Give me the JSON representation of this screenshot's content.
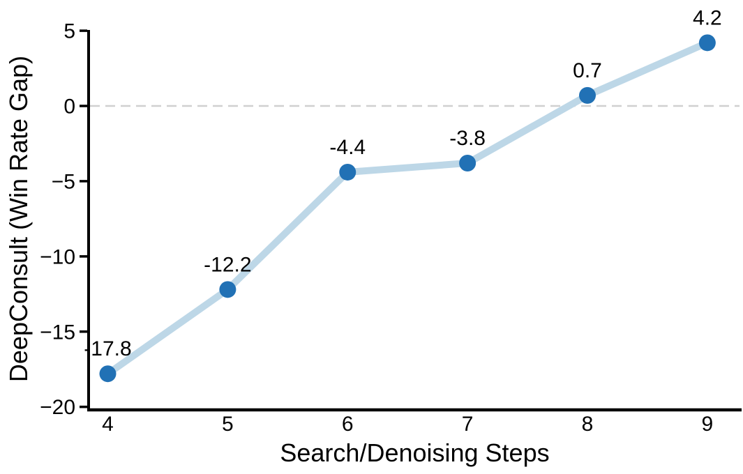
{
  "chart_data": {
    "type": "line",
    "x": [
      4,
      5,
      6,
      7,
      8,
      9
    ],
    "series": [
      {
        "name": "DeepConsult win rate gap",
        "values": [
          -17.8,
          -12.2,
          -4.4,
          -3.8,
          0.7,
          4.2
        ],
        "point_labels": [
          "-17.8",
          "-12.2",
          "-4.4",
          "-3.8",
          "0.7",
          "4.2"
        ]
      }
    ],
    "title": "",
    "xlabel": "Search/Denoising Steps",
    "ylabel": "DeepConsult (Win Rate Gap)",
    "xticks": [
      4,
      5,
      6,
      7,
      8,
      9
    ],
    "xtick_labels": [
      "4",
      "5",
      "6",
      "7",
      "8",
      "9"
    ],
    "yticks": [
      5,
      0,
      -5,
      -10,
      -15,
      -20
    ],
    "ytick_labels": [
      "5",
      "0",
      "−5",
      "−10",
      "−15",
      "−20"
    ],
    "xlim": [
      3.84,
      9.28
    ],
    "ylim": [
      -20.2,
      5.05
    ],
    "zero_reference_line": 0,
    "grid": false,
    "legend": null,
    "colors": {
      "line": "#bdd7e7",
      "marker": "#2171b5",
      "zero_line": "#d0d0d0",
      "axis": "#000000",
      "text": "#000000",
      "background": "#ffffff"
    }
  }
}
